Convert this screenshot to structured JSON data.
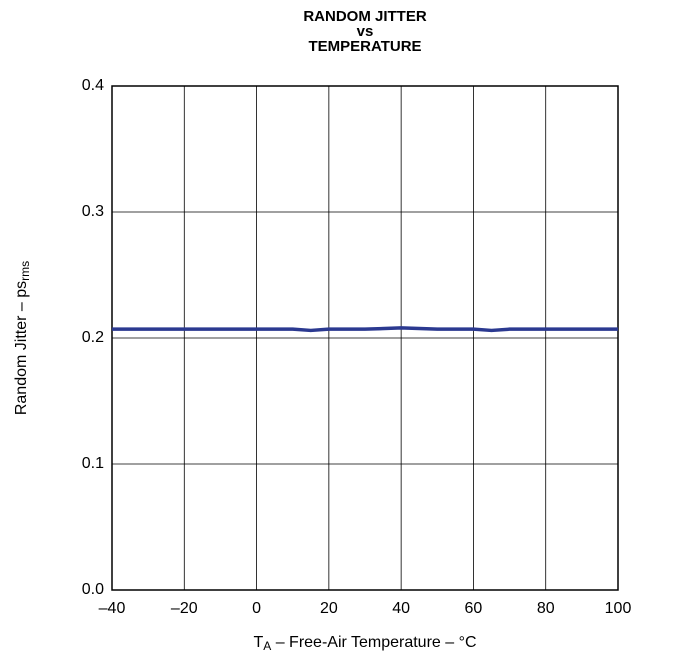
{
  "chart_data": {
    "type": "line",
    "title": [
      "RANDOM JITTER",
      "vs",
      "TEMPERATURE"
    ],
    "xlabel": {
      "main": "T",
      "sub": "A",
      "rest": " – Free-Air Temperature – °C"
    },
    "ylabel": {
      "main": "Random Jitter – ps",
      "sub": "rms"
    },
    "x": [
      -40,
      -20,
      0,
      10,
      15,
      20,
      30,
      40,
      50,
      60,
      65,
      70,
      80,
      100
    ],
    "series": [
      {
        "name": "Random Jitter",
        "color": "#2b3990",
        "values": [
          0.207,
          0.207,
          0.207,
          0.207,
          0.206,
          0.207,
          0.207,
          0.208,
          0.207,
          0.207,
          0.206,
          0.207,
          0.207,
          0.207
        ]
      }
    ],
    "xlim": [
      -40,
      100
    ],
    "xticks": [
      {
        "value": -40,
        "label": "–40"
      },
      {
        "value": -20,
        "label": "–20"
      },
      0,
      20,
      40,
      60,
      80,
      100
    ],
    "ylim": [
      0,
      0.4
    ],
    "yticks": [
      {
        "value": 0,
        "label": "0.0"
      },
      0.1,
      0.2,
      0.3,
      0.4
    ],
    "grid": true
  }
}
